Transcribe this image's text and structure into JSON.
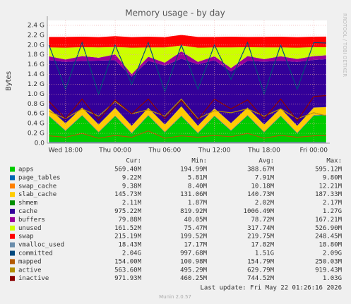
{
  "chart_data": {
    "type": "area",
    "title": "Memory usage - by day",
    "ylabel": "Bytes",
    "side_note": "RRDTOOL / TOBI OETIKER",
    "footer": "Last update: Fri May 22 01:26:16 2026",
    "version": "Munin 2.0.57",
    "grid": true,
    "x": [
      16,
      18,
      20,
      22,
      24,
      26,
      28,
      30,
      32,
      34,
      36,
      38,
      40,
      42,
      44,
      46,
      48,
      49.5
    ],
    "xlim": [
      15.8,
      49.6
    ],
    "xticks": [
      {
        "value": 18,
        "label": "Wed 18:00"
      },
      {
        "value": 24,
        "label": "Thu 00:00"
      },
      {
        "value": 30,
        "label": "Thu 06:00"
      },
      {
        "value": 36,
        "label": "Thu 12:00"
      },
      {
        "value": 42,
        "label": "Thu 18:00"
      },
      {
        "value": 48,
        "label": "Fri 00:00"
      }
    ],
    "ylim": [
      0,
      2.5
    ],
    "yticks": [
      {
        "value": 0,
        "label": "0.0"
      },
      {
        "value": 0.2,
        "label": "0.2 G"
      },
      {
        "value": 0.4,
        "label": "0.4 G"
      },
      {
        "value": 0.6,
        "label": "0.6 G"
      },
      {
        "value": 0.8,
        "label": "0.8 G"
      },
      {
        "value": 1.0,
        "label": "1.0 G"
      },
      {
        "value": 1.2,
        "label": "1.2 G"
      },
      {
        "value": 1.4,
        "label": "1.4 G"
      },
      {
        "value": 1.6,
        "label": "1.6 G"
      },
      {
        "value": 1.8,
        "label": "1.8 G"
      },
      {
        "value": 2.0,
        "label": "2.0 G"
      },
      {
        "value": 2.2,
        "label": "2.2 G"
      },
      {
        "value": 2.4,
        "label": "2.4 G"
      }
    ],
    "series": [
      {
        "name": "apps",
        "color": "#00cc00",
        "style": "area",
        "values": [
          0.55,
          0.25,
          0.56,
          0.22,
          0.55,
          0.2,
          0.56,
          0.22,
          0.55,
          0.2,
          0.55,
          0.25,
          0.56,
          0.22,
          0.55,
          0.2,
          0.56,
          0.57
        ]
      },
      {
        "name": "page_tables",
        "color": "#0066b3",
        "style": "area",
        "values": [
          0.009,
          0.008,
          0.009,
          0.007,
          0.009,
          0.008,
          0.009,
          0.007,
          0.009,
          0.008,
          0.009,
          0.008,
          0.009,
          0.007,
          0.009,
          0.008,
          0.009,
          0.009
        ]
      },
      {
        "name": "swap_cache",
        "color": "#ff8000",
        "style": "area",
        "values": [
          0.009,
          0.01,
          0.009,
          0.012,
          0.009,
          0.01,
          0.009,
          0.011,
          0.009,
          0.01,
          0.009,
          0.01,
          0.009,
          0.012,
          0.009,
          0.01,
          0.009,
          0.009
        ]
      },
      {
        "name": "slab_cache",
        "color": "#ffcc00",
        "style": "area",
        "values": [
          0.14,
          0.135,
          0.145,
          0.14,
          0.15,
          0.135,
          0.14,
          0.14,
          0.18,
          0.135,
          0.14,
          0.14,
          0.145,
          0.14,
          0.14,
          0.135,
          0.145,
          0.146
        ]
      },
      {
        "name": "shmem",
        "color": "#008f00",
        "style": "area",
        "values": [
          0.002,
          0.002,
          0.002,
          0.002,
          0.002,
          0.002,
          0.002,
          0.002,
          0.002,
          0.002,
          0.002,
          0.002,
          0.002,
          0.002,
          0.002,
          0.002,
          0.002,
          0.002
        ]
      },
      {
        "name": "cache",
        "color": "#330099",
        "style": "area",
        "values": [
          0.98,
          1.25,
          0.95,
          1.3,
          0.97,
          1.0,
          0.96,
          1.2,
          0.97,
          1.25,
          0.98,
          1.05,
          0.95,
          1.28,
          0.97,
          1.3,
          0.97,
          0.975
        ]
      },
      {
        "name": "buffers",
        "color": "#990099",
        "style": "area",
        "values": [
          0.08,
          0.05,
          0.1,
          0.06,
          0.12,
          0.05,
          0.08,
          0.06,
          0.15,
          0.05,
          0.08,
          0.07,
          0.1,
          0.05,
          0.09,
          0.06,
          0.08,
          0.08
        ]
      },
      {
        "name": "unused",
        "color": "#ccff00",
        "style": "area",
        "values": [
          0.18,
          0.24,
          0.18,
          0.21,
          0.15,
          0.54,
          0.19,
          0.31,
          0.12,
          0.29,
          0.18,
          0.42,
          0.18,
          0.24,
          0.18,
          0.23,
          0.18,
          0.165
        ]
      },
      {
        "name": "swap",
        "color": "#ff0000",
        "style": "area",
        "values": [
          0.215,
          0.22,
          0.215,
          0.21,
          0.22,
          0.215,
          0.22,
          0.21,
          0.215,
          0.22,
          0.215,
          0.22,
          0.21,
          0.215,
          0.22,
          0.215,
          0.215,
          0.215
        ]
      },
      {
        "name": "vmalloc_used",
        "color": "#6a8dab",
        "style": "line",
        "values": [
          0.018,
          0.018,
          0.018,
          0.018,
          0.018,
          0.018,
          0.018,
          0.018,
          0.018,
          0.018,
          0.018,
          0.018,
          0.018,
          0.018,
          0.018,
          0.018,
          0.018,
          0.018
        ]
      },
      {
        "name": "committed",
        "color": "#00487d",
        "style": "line",
        "values": [
          2.0,
          1.1,
          2.05,
          1.0,
          2.0,
          1.2,
          2.05,
          1.05,
          2.0,
          1.1,
          2.0,
          1.3,
          2.05,
          1.0,
          2.0,
          1.1,
          2.05,
          2.04
        ]
      },
      {
        "name": "mapped",
        "color": "#b35a00",
        "style": "line",
        "values": [
          0.15,
          0.12,
          0.2,
          0.1,
          0.16,
          0.12,
          0.25,
          0.1,
          0.15,
          0.12,
          0.16,
          0.13,
          0.2,
          0.1,
          0.16,
          0.12,
          0.15,
          0.154
        ]
      },
      {
        "name": "active",
        "color": "#b38f00",
        "style": "line",
        "values": [
          0.65,
          0.5,
          0.7,
          0.55,
          0.85,
          0.6,
          0.68,
          0.55,
          0.9,
          0.5,
          0.66,
          0.62,
          0.7,
          0.55,
          0.7,
          0.5,
          0.62,
          0.56
        ]
      },
      {
        "name": "inactive",
        "color": "#8b0000",
        "style": "line",
        "values": [
          0.85,
          0.5,
          0.9,
          0.47,
          0.88,
          0.6,
          0.9,
          0.5,
          0.87,
          0.48,
          0.9,
          0.7,
          0.88,
          0.5,
          0.9,
          0.46,
          0.95,
          0.97
        ]
      }
    ],
    "legend_stats": {
      "columns": [
        "Cur:",
        "Min:",
        "Avg:",
        "Max:"
      ],
      "rows": [
        [
          "569.40M",
          "194.99M",
          "388.67M",
          "595.12M"
        ],
        [
          "9.22M",
          "5.81M",
          "7.91M",
          "9.80M"
        ],
        [
          "9.38M",
          "8.40M",
          "10.18M",
          "12.21M"
        ],
        [
          "145.73M",
          "131.06M",
          "140.73M",
          "187.33M"
        ],
        [
          "2.11M",
          "1.87M",
          "2.02M",
          "2.17M"
        ],
        [
          "975.22M",
          "819.92M",
          "1006.49M",
          "1.27G"
        ],
        [
          "79.88M",
          "40.05M",
          "78.72M",
          "167.21M"
        ],
        [
          "161.52M",
          "75.47M",
          "317.74M",
          "526.90M"
        ],
        [
          "215.19M",
          "199.52M",
          "219.75M",
          "248.45M"
        ],
        [
          "18.43M",
          "17.17M",
          "17.82M",
          "18.80M"
        ],
        [
          "2.04G",
          "997.68M",
          "1.51G",
          "2.09G"
        ],
        [
          "154.00M",
          "100.98M",
          "154.79M",
          "250.03M"
        ],
        [
          "563.60M",
          "495.29M",
          "629.79M",
          "919.43M"
        ],
        [
          "971.93M",
          "460.25M",
          "744.52M",
          "1.03G"
        ]
      ]
    }
  }
}
